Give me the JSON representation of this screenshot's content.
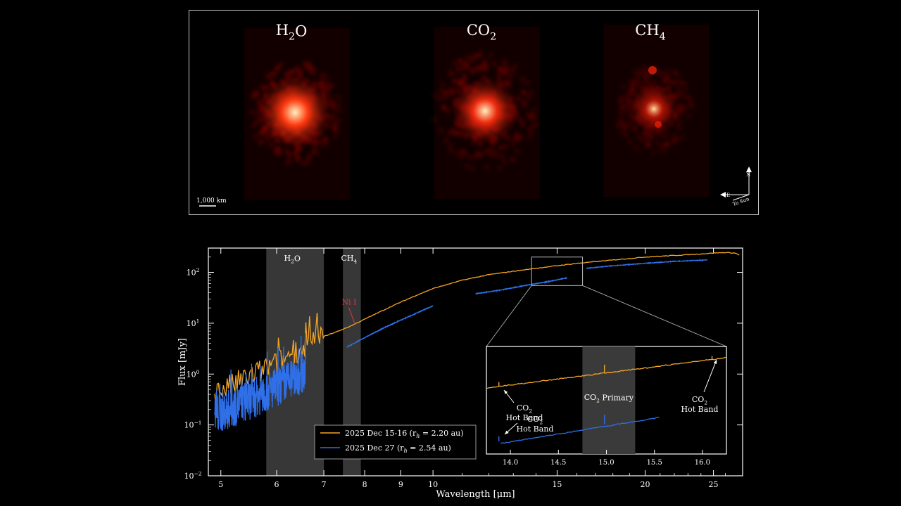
{
  "images": {
    "panels": [
      {
        "label": "H",
        "sub": "2",
        "tail": "O",
        "color_core": "#fff2c0",
        "color_mid": "#ff3a10",
        "color_halo": "#7a0800",
        "spread": 1.0,
        "core": 1.0
      },
      {
        "label": "CO",
        "sub": "2",
        "tail": "",
        "color_core": "#fff2c0",
        "color_mid": "#ff3010",
        "color_halo": "#6e0600",
        "spread": 1.15,
        "core": 0.9
      },
      {
        "label": "CH",
        "sub": "4",
        "tail": "",
        "color_core": "#ffe0a0",
        "color_mid": "#e82008",
        "color_halo": "#5a0400",
        "spread": 0.85,
        "core": 0.6
      }
    ],
    "scalebar_label": "1,000 km",
    "compass": {
      "north": "N",
      "east": "E",
      "sun": "To Sun"
    }
  },
  "chart_data": {
    "type": "line",
    "xlabel": "Wavelength [μm]",
    "ylabel": "Flux [mJy]",
    "xscale": "log",
    "yscale": "log",
    "xlim": [
      4.8,
      27.5
    ],
    "ylim": [
      0.01,
      300
    ],
    "x_ticks": [
      5,
      6,
      7,
      8,
      9,
      10,
      15,
      20,
      25
    ],
    "y_ticks": [
      {
        "v": 0.01,
        "base": "10",
        "exp": "−2"
      },
      {
        "v": 0.1,
        "base": "10",
        "exp": "−1"
      },
      {
        "v": 1,
        "base": "10",
        "exp": "0"
      },
      {
        "v": 10,
        "base": "10",
        "exp": "1"
      },
      {
        "v": 100,
        "base": "10",
        "exp": "2"
      }
    ],
    "bands": [
      {
        "x0": 5.8,
        "x1": 7.0,
        "label": "H",
        "sub": "2",
        "tail": "O"
      },
      {
        "x0": 7.45,
        "x1": 7.9,
        "label": "CH",
        "sub": "4",
        "tail": ""
      }
    ],
    "series": [
      {
        "name": "2025 Dec 15-16 (r_h = 2.20 au)",
        "color": "#f5a623",
        "x": [
          4.9,
          5.0,
          5.2,
          5.4,
          5.6,
          5.8,
          6.0,
          6.2,
          6.4,
          6.6,
          6.8,
          7.0,
          7.3,
          7.6,
          8.0,
          8.5,
          9.0,
          9.5,
          10.0,
          11.0,
          12.0,
          13.0,
          14.0,
          15.0,
          16.0,
          18.0,
          20.0,
          22.0,
          24.0,
          25.0,
          26.0,
          26.8,
          27.2
        ],
        "y": [
          0.4,
          0.5,
          0.6,
          0.8,
          1.0,
          1.3,
          1.6,
          2.2,
          2.8,
          3.4,
          4.5,
          5.5,
          6.8,
          8.5,
          12,
          18,
          26,
          36,
          48,
          70,
          90,
          105,
          120,
          135,
          150,
          175,
          200,
          215,
          230,
          240,
          245,
          240,
          220
        ],
        "noisy_below": 7.0
      },
      {
        "name": "2025 Dec 27 (r_h = 2.54 au)",
        "color": "#2f6fe8",
        "segments": [
          {
            "x": [
              4.9,
              5.0,
              5.2,
              5.4,
              5.6,
              5.8,
              6.0,
              6.2,
              6.4,
              6.6
            ],
            "y": [
              0.15,
              0.18,
              0.22,
              0.28,
              0.35,
              0.45,
              0.55,
              0.7,
              0.85,
              1.15
            ],
            "noisy": true
          },
          {
            "x": [
              7.55,
              8.0,
              8.5,
              9.0,
              9.5,
              10.0
            ],
            "y": [
              3.4,
              5.2,
              8,
              11.5,
              16,
              22
            ],
            "noisy": false
          },
          {
            "x": [
              11.5,
              12.5,
              13.5,
              14.5,
              15.5
            ],
            "y": [
              38,
              45,
              55,
              65,
              78
            ],
            "noisy": false
          },
          {
            "x": [
              16.5,
              18.0,
              20.0,
              22.0,
              24.5
            ],
            "y": [
              120,
              135,
              150,
              165,
              175
            ],
            "noisy": false
          }
        ]
      }
    ],
    "annotation": {
      "text": "Ni I",
      "x": 7.7,
      "y": 9.5,
      "color": "#e8354a"
    },
    "legend": {
      "entries": [
        "2025 Dec 15-16 (r",
        "= 2.20 au)",
        "2025 Dec 27 (r",
        "= 2.54 au)"
      ],
      "position": "lower-center"
    },
    "inset": {
      "xlim": [
        13.75,
        16.25
      ],
      "x_ticks": [
        14.0,
        14.5,
        15.0,
        15.5,
        16.0
      ],
      "x_tick_labels": [
        "14.0",
        "14.5",
        "15.0",
        "15.5",
        "16.0"
      ],
      "band": {
        "x0": 14.75,
        "x1": 15.3,
        "label": "CO",
        "sub": "2",
        "tail": " Primary"
      },
      "annotations": [
        {
          "l1a": "CO",
          "l1sub": "2",
          "l2": "Hot Band",
          "target": "orange",
          "tx": 13.88
        },
        {
          "l1a": "CO",
          "l1sub": "2",
          "l2": "Hot Band",
          "target": "blue",
          "tx": 13.88
        },
        {
          "l1a": "CO",
          "l1sub": "2",
          "l2": "Hot Band",
          "target": "orange",
          "tx": 16.1
        }
      ],
      "zoom_box": {
        "x0": 13.8,
        "x1": 16.3,
        "y0": 55,
        "y1": 200
      }
    }
  }
}
